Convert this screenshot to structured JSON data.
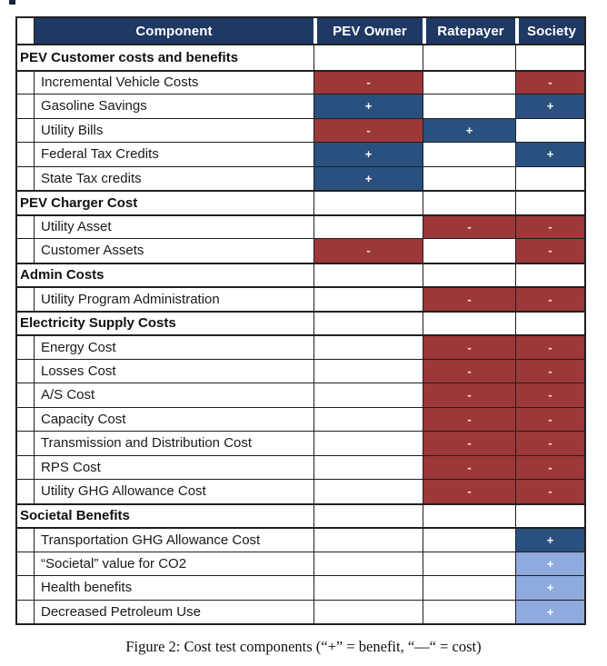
{
  "colors": {
    "header_navy": "#1F3864",
    "benefit_blue": "#2A5080",
    "benefit_light_blue": "#8FAADC",
    "cost_red": "#9C3838"
  },
  "symbols": {
    "plus": "+",
    "minus": "-"
  },
  "table": {
    "columns": [
      "Component",
      "PEV Owner",
      "Ratepayer",
      "Society"
    ],
    "rows": [
      {
        "type": "section",
        "label": "PEV Customer costs and benefits",
        "cells": [
          "",
          "",
          ""
        ]
      },
      {
        "type": "item",
        "label": "Incremental Vehicle Costs",
        "cells": [
          "minus",
          "",
          "minus"
        ]
      },
      {
        "type": "item",
        "label": "Gasoline Savings",
        "cells": [
          "plus",
          "",
          "plus"
        ]
      },
      {
        "type": "item",
        "label": "Utility Bills",
        "cells": [
          "minus",
          "plus",
          ""
        ]
      },
      {
        "type": "item",
        "label": "Federal Tax Credits",
        "cells": [
          "plus",
          "",
          "plus"
        ]
      },
      {
        "type": "item",
        "label": "State Tax credits",
        "cells": [
          "plus",
          "",
          ""
        ]
      },
      {
        "type": "section",
        "label": "PEV Charger Cost",
        "cells": [
          "",
          "",
          ""
        ]
      },
      {
        "type": "item",
        "label": "Utility Asset",
        "cells": [
          "",
          "minus",
          "minus"
        ]
      },
      {
        "type": "item",
        "label": "Customer Assets",
        "cells": [
          "minus",
          "",
          "minus"
        ]
      },
      {
        "type": "section",
        "label": "Admin Costs",
        "cells": [
          "",
          "",
          ""
        ]
      },
      {
        "type": "item",
        "label": "Utility Program Administration",
        "cells": [
          "",
          "minus",
          "minus"
        ]
      },
      {
        "type": "section",
        "label": "Electricity Supply Costs",
        "cells": [
          "",
          "",
          ""
        ]
      },
      {
        "type": "item",
        "label": "Energy Cost",
        "cells": [
          "",
          "minus",
          "minus"
        ]
      },
      {
        "type": "item",
        "label": "Losses Cost",
        "cells": [
          "",
          "minus",
          "minus"
        ]
      },
      {
        "type": "item",
        "label": "A/S Cost",
        "cells": [
          "",
          "minus",
          "minus"
        ]
      },
      {
        "type": "item",
        "label": "Capacity Cost",
        "cells": [
          "",
          "minus",
          "minus"
        ]
      },
      {
        "type": "item",
        "label": "Transmission and Distribution Cost",
        "cells": [
          "",
          "minus",
          "minus"
        ]
      },
      {
        "type": "item",
        "label": "RPS Cost",
        "cells": [
          "",
          "minus",
          "minus"
        ]
      },
      {
        "type": "item",
        "label": "Utility GHG Allowance Cost",
        "cells": [
          "",
          "minus",
          "minus"
        ]
      },
      {
        "type": "section",
        "label": "Societal Benefits",
        "cells": [
          "",
          "",
          ""
        ]
      },
      {
        "type": "item",
        "label": "Transportation GHG Allowance Cost",
        "cells": [
          "",
          "",
          "plus"
        ]
      },
      {
        "type": "item",
        "label": "“Societal” value for CO2",
        "cells": [
          "",
          "",
          "plus_light"
        ]
      },
      {
        "type": "item",
        "label": "Health benefits",
        "cells": [
          "",
          "",
          "plus_light"
        ]
      },
      {
        "type": "item",
        "label": "Decreased Petroleum Use",
        "cells": [
          "",
          "",
          "plus_light"
        ]
      }
    ]
  },
  "caption": "Figure 2: Cost test components (“+” = benefit, “—“ = cost)"
}
